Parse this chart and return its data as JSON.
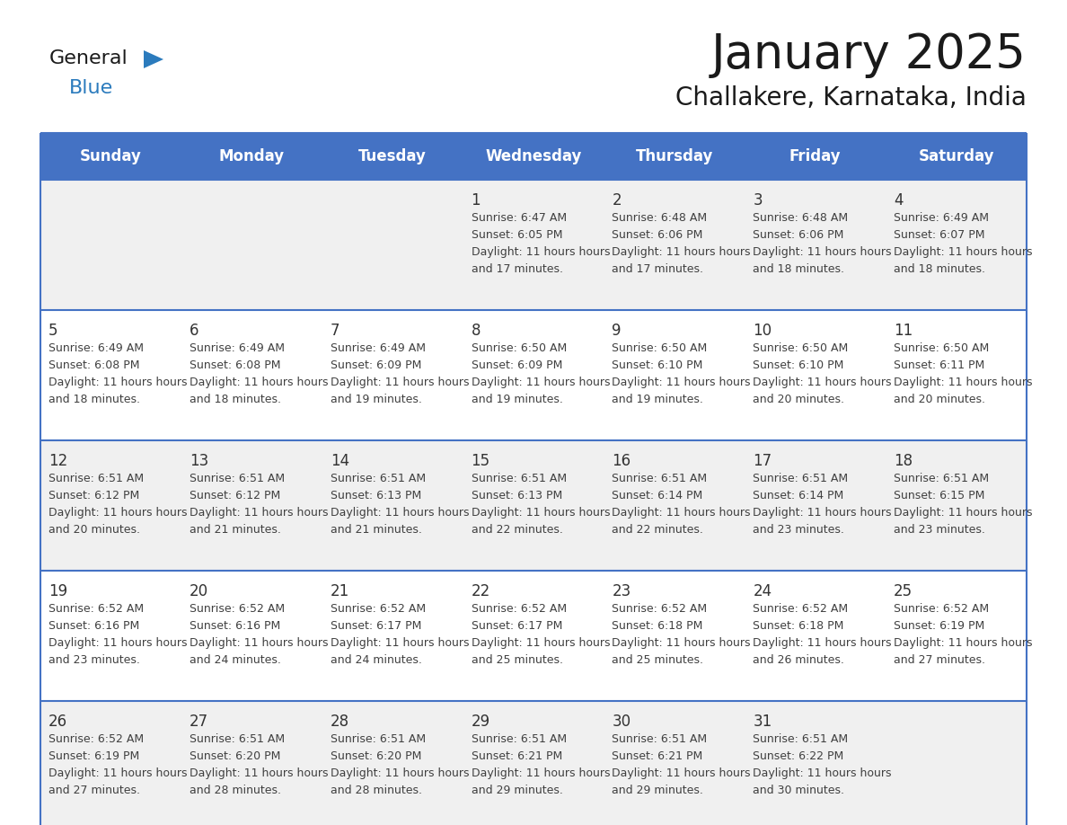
{
  "title": "January 2025",
  "subtitle": "Challakere, Karnataka, India",
  "header_bg_color": "#4472C4",
  "header_text_color": "#FFFFFF",
  "day_names": [
    "Sunday",
    "Monday",
    "Tuesday",
    "Wednesday",
    "Thursday",
    "Friday",
    "Saturday"
  ],
  "row_bg_colors": [
    "#F0F0F0",
    "#FFFFFF"
  ],
  "grid_line_color": "#4472C4",
  "text_color": "#404040",
  "date_color": "#333333",
  "logo_general_color": "#1a1a1a",
  "logo_blue_color": "#2B7BBD",
  "calendar": [
    [
      null,
      null,
      null,
      {
        "day": 1,
        "sunrise": "6:47 AM",
        "sunset": "6:05 PM",
        "daylight": "11 hours and 17 minutes."
      },
      {
        "day": 2,
        "sunrise": "6:48 AM",
        "sunset": "6:06 PM",
        "daylight": "11 hours and 17 minutes."
      },
      {
        "day": 3,
        "sunrise": "6:48 AM",
        "sunset": "6:06 PM",
        "daylight": "11 hours and 18 minutes."
      },
      {
        "day": 4,
        "sunrise": "6:49 AM",
        "sunset": "6:07 PM",
        "daylight": "11 hours and 18 minutes."
      }
    ],
    [
      {
        "day": 5,
        "sunrise": "6:49 AM",
        "sunset": "6:08 PM",
        "daylight": "11 hours and 18 minutes."
      },
      {
        "day": 6,
        "sunrise": "6:49 AM",
        "sunset": "6:08 PM",
        "daylight": "11 hours and 18 minutes."
      },
      {
        "day": 7,
        "sunrise": "6:49 AM",
        "sunset": "6:09 PM",
        "daylight": "11 hours and 19 minutes."
      },
      {
        "day": 8,
        "sunrise": "6:50 AM",
        "sunset": "6:09 PM",
        "daylight": "11 hours and 19 minutes."
      },
      {
        "day": 9,
        "sunrise": "6:50 AM",
        "sunset": "6:10 PM",
        "daylight": "11 hours and 19 minutes."
      },
      {
        "day": 10,
        "sunrise": "6:50 AM",
        "sunset": "6:10 PM",
        "daylight": "11 hours and 20 minutes."
      },
      {
        "day": 11,
        "sunrise": "6:50 AM",
        "sunset": "6:11 PM",
        "daylight": "11 hours and 20 minutes."
      }
    ],
    [
      {
        "day": 12,
        "sunrise": "6:51 AM",
        "sunset": "6:12 PM",
        "daylight": "11 hours and 20 minutes."
      },
      {
        "day": 13,
        "sunrise": "6:51 AM",
        "sunset": "6:12 PM",
        "daylight": "11 hours and 21 minutes."
      },
      {
        "day": 14,
        "sunrise": "6:51 AM",
        "sunset": "6:13 PM",
        "daylight": "11 hours and 21 minutes."
      },
      {
        "day": 15,
        "sunrise": "6:51 AM",
        "sunset": "6:13 PM",
        "daylight": "11 hours and 22 minutes."
      },
      {
        "day": 16,
        "sunrise": "6:51 AM",
        "sunset": "6:14 PM",
        "daylight": "11 hours and 22 minutes."
      },
      {
        "day": 17,
        "sunrise": "6:51 AM",
        "sunset": "6:14 PM",
        "daylight": "11 hours and 23 minutes."
      },
      {
        "day": 18,
        "sunrise": "6:51 AM",
        "sunset": "6:15 PM",
        "daylight": "11 hours and 23 minutes."
      }
    ],
    [
      {
        "day": 19,
        "sunrise": "6:52 AM",
        "sunset": "6:16 PM",
        "daylight": "11 hours and 23 minutes."
      },
      {
        "day": 20,
        "sunrise": "6:52 AM",
        "sunset": "6:16 PM",
        "daylight": "11 hours and 24 minutes."
      },
      {
        "day": 21,
        "sunrise": "6:52 AM",
        "sunset": "6:17 PM",
        "daylight": "11 hours and 24 minutes."
      },
      {
        "day": 22,
        "sunrise": "6:52 AM",
        "sunset": "6:17 PM",
        "daylight": "11 hours and 25 minutes."
      },
      {
        "day": 23,
        "sunrise": "6:52 AM",
        "sunset": "6:18 PM",
        "daylight": "11 hours and 25 minutes."
      },
      {
        "day": 24,
        "sunrise": "6:52 AM",
        "sunset": "6:18 PM",
        "daylight": "11 hours and 26 minutes."
      },
      {
        "day": 25,
        "sunrise": "6:52 AM",
        "sunset": "6:19 PM",
        "daylight": "11 hours and 27 minutes."
      }
    ],
    [
      {
        "day": 26,
        "sunrise": "6:52 AM",
        "sunset": "6:19 PM",
        "daylight": "11 hours and 27 minutes."
      },
      {
        "day": 27,
        "sunrise": "6:51 AM",
        "sunset": "6:20 PM",
        "daylight": "11 hours and 28 minutes."
      },
      {
        "day": 28,
        "sunrise": "6:51 AM",
        "sunset": "6:20 PM",
        "daylight": "11 hours and 28 minutes."
      },
      {
        "day": 29,
        "sunrise": "6:51 AM",
        "sunset": "6:21 PM",
        "daylight": "11 hours and 29 minutes."
      },
      {
        "day": 30,
        "sunrise": "6:51 AM",
        "sunset": "6:21 PM",
        "daylight": "11 hours and 29 minutes."
      },
      {
        "day": 31,
        "sunrise": "6:51 AM",
        "sunset": "6:22 PM",
        "daylight": "11 hours and 30 minutes."
      },
      null
    ]
  ],
  "figsize": [
    11.88,
    9.18
  ],
  "dpi": 100
}
